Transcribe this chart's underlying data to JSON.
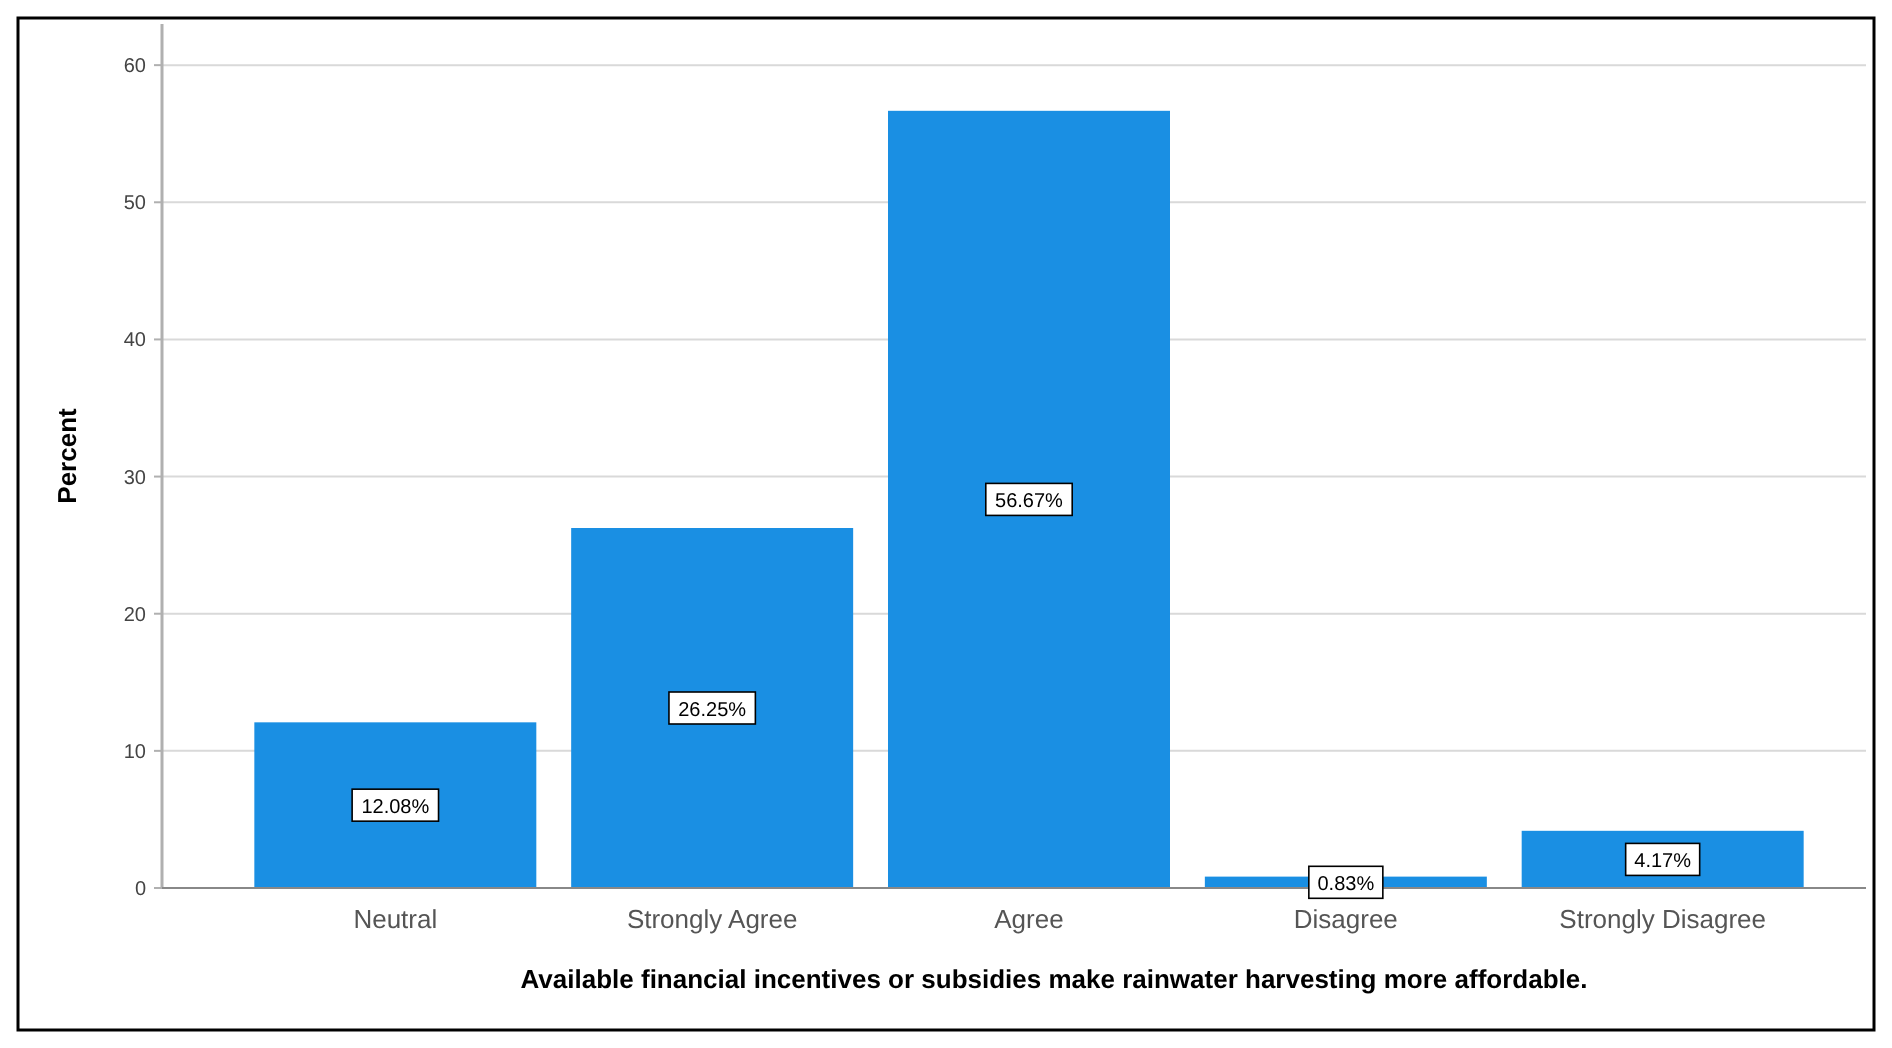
{
  "chart_data": {
    "type": "bar",
    "xlabel": "Available financial incentives or subsidies make rainwater harvesting more affordable.",
    "ylabel": "Percent",
    "categories": [
      "Neutral",
      "Strongly Agree",
      "Agree",
      "Disagree",
      "Strongly Disagree"
    ],
    "values": [
      12.08,
      26.25,
      56.67,
      0.83,
      4.17
    ],
    "value_labels": [
      "12.08%",
      "26.25%",
      "56.67%",
      "0.83%",
      "4.17%"
    ],
    "color": "#1a8fe3",
    "ylim": [
      0,
      63
    ],
    "yticks": [
      0,
      10,
      20,
      30,
      40,
      50,
      60
    ],
    "grid": "y"
  }
}
